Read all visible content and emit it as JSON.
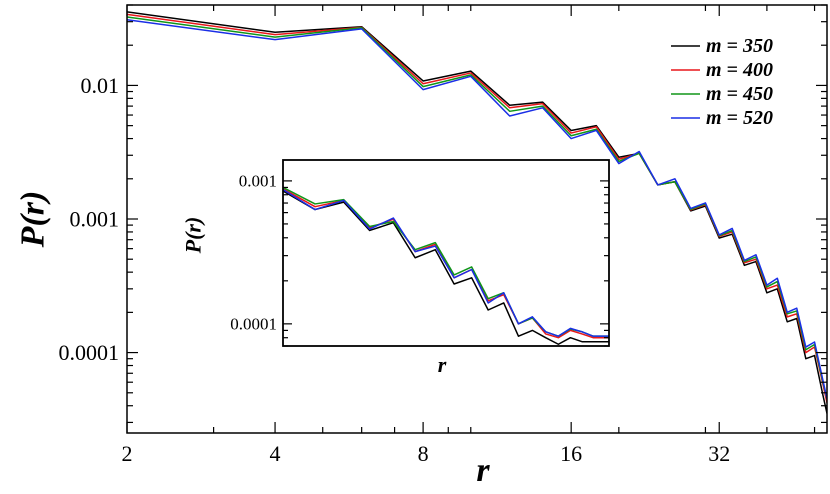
{
  "chart_data": [
    {
      "type": "line",
      "title": "",
      "xlabel": "r",
      "ylabel": "P(r)",
      "xscale": "log",
      "yscale": "log",
      "xlim": [
        2,
        53
      ],
      "ylim": [
        2.5e-05,
        0.04
      ],
      "x_ticks": [
        2,
        4,
        8,
        16,
        32
      ],
      "x_tick_labels": [
        "2",
        "4",
        "8",
        "16",
        "32"
      ],
      "y_ticks": [
        0.01,
        0.001,
        0.0001
      ],
      "y_tick_labels": [
        "0.01",
        "0.001",
        "0.0001"
      ],
      "grid": false,
      "legend_position": "top-right",
      "x": [
        2,
        4,
        6,
        8,
        10,
        12,
        14,
        16,
        18,
        20,
        22,
        24,
        26,
        28,
        30,
        32,
        34,
        36,
        38,
        40,
        42,
        44,
        46,
        48,
        50,
        52,
        53
      ],
      "series": [
        {
          "name": "m = 350",
          "color": "#000000",
          "values": [
            0.0355,
            0.025,
            0.0275,
            0.0108,
            0.0128,
            0.0071,
            0.0075,
            0.0046,
            0.005,
            0.0029,
            0.0031,
            0.0018,
            0.0019,
            0.00115,
            0.00125,
            0.00072,
            0.00077,
            0.00045,
            0.00048,
            0.00028,
            0.0003,
            0.00017,
            0.00018,
            9e-05,
            9.5e-05,
            4.8e-05,
            3.5e-05
          ]
        },
        {
          "name": "m = 400",
          "color": "#e8161a",
          "values": [
            0.034,
            0.024,
            0.0272,
            0.0103,
            0.0124,
            0.0068,
            0.0073,
            0.0044,
            0.0049,
            0.0028,
            0.0031,
            0.0018,
            0.0019,
            0.00117,
            0.00128,
            0.00074,
            0.0008,
            0.00047,
            0.0005,
            0.0003,
            0.00032,
            0.000185,
            0.000195,
            0.0001,
            0.00011,
            5.8e-05,
            4.2e-05
          ]
        },
        {
          "name": "m = 450",
          "color": "#109618",
          "values": [
            0.0325,
            0.023,
            0.027,
            0.0098,
            0.012,
            0.0064,
            0.007,
            0.0042,
            0.0047,
            0.0027,
            0.0031,
            0.0018,
            0.0019,
            0.00118,
            0.0013,
            0.00075,
            0.00082,
            0.00048,
            0.00052,
            0.00031,
            0.00034,
            0.000195,
            0.000205,
            0.000105,
            0.000115,
            6e-05,
            4.5e-05
          ]
        },
        {
          "name": "m = 520",
          "color": "#1a2ee6",
          "values": [
            0.031,
            0.022,
            0.0265,
            0.0093,
            0.0117,
            0.0059,
            0.0068,
            0.004,
            0.0046,
            0.0026,
            0.0032,
            0.0018,
            0.002,
            0.0012,
            0.00132,
            0.00076,
            0.00085,
            0.00049,
            0.00054,
            0.00032,
            0.00036,
            0.0002,
            0.000215,
            0.00011,
            0.00012,
            6.2e-05,
            4.5e-05
          ]
        }
      ]
    },
    {
      "type": "line",
      "title": "",
      "xlabel": "r",
      "ylabel": "P(r)",
      "xscale": "log",
      "yscale": "log",
      "xlim": [
        16,
        53
      ],
      "ylim": [
        7e-05,
        0.0014
      ],
      "y_ticks": [
        0.001,
        0.0001
      ],
      "y_tick_labels": [
        "0.001",
        "0.0001"
      ],
      "grid": false,
      "x": [
        16,
        18,
        20,
        22,
        24,
        26,
        28,
        30,
        32,
        34,
        36,
        38,
        40,
        42,
        44,
        46,
        48,
        50,
        52,
        53
      ],
      "series": [
        {
          "name": "m = 350",
          "color": "#000000",
          "values": [
            0.00085,
            0.00063,
            0.00071,
            0.00045,
            0.00051,
            0.00029,
            0.00033,
            0.00019,
            0.00021,
            0.000125,
            0.00014,
            8.2e-05,
            9e-05,
            8e-05,
            7.2e-05,
            8e-05,
            7.5e-05,
            7.5e-05,
            7.5e-05,
            7.5e-05
          ]
        },
        {
          "name": "m = 400",
          "color": "#e8161a",
          "values": [
            0.00088,
            0.00066,
            0.00073,
            0.00047,
            0.00054,
            0.00032,
            0.00036,
            0.00021,
            0.00024,
            0.000145,
            0.00016,
            0.0001,
            0.00011,
            8.5e-05,
            8e-05,
            9e-05,
            8.5e-05,
            8e-05,
            8e-05,
            8e-05
          ]
        },
        {
          "name": "m = 450",
          "color": "#109618",
          "values": [
            0.0009,
            0.00069,
            0.00074,
            0.00048,
            0.00052,
            0.00033,
            0.00037,
            0.00022,
            0.00025,
            0.00015,
            0.000165,
            0.0001,
            0.00011,
            8.8e-05,
            8.2e-05,
            9.2e-05,
            8.8e-05,
            8.2e-05,
            8.2e-05,
            8.2e-05
          ]
        },
        {
          "name": "m = 520",
          "color": "#1a2ee6",
          "values": [
            0.00087,
            0.00063,
            0.00073,
            0.00046,
            0.00055,
            0.00032,
            0.00035,
            0.00021,
            0.00024,
            0.00014,
            0.000165,
            0.0001,
            0.000112,
            8.8e-05,
            8.2e-05,
            9.3e-05,
            8.8e-05,
            8.2e-05,
            8.2e-05,
            8.2e-05
          ]
        }
      ]
    }
  ]
}
